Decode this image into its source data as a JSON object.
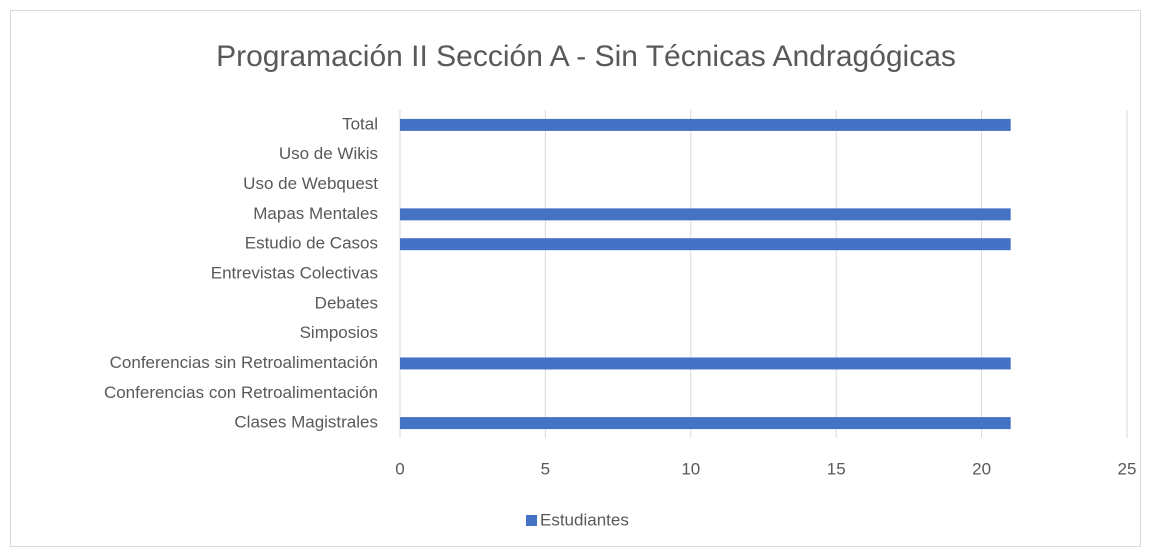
{
  "chart_data": {
    "type": "hbar",
    "title": "Programación II Sección A - Sin Técnicas Andragógicas",
    "categories": [
      "Clases Magistrales",
      "Conferencias con Retroalimentación",
      "Conferencias sin Retroalimentación",
      "Simposios",
      "Debates",
      "Entrevistas Colectivas",
      "Estudio de Casos",
      "Mapas Mentales",
      "Uso de Webquest",
      "Uso de Wikis",
      "Total"
    ],
    "series": [
      {
        "name": "Estudiantes",
        "color": "#4472c4",
        "values": [
          21,
          0,
          21,
          0,
          0,
          0,
          21,
          21,
          0,
          0,
          21
        ]
      }
    ],
    "xlim": [
      0,
      25
    ],
    "xticks": [
      0,
      5,
      10,
      15,
      20,
      25
    ],
    "grid": true,
    "legend": "bottom"
  }
}
